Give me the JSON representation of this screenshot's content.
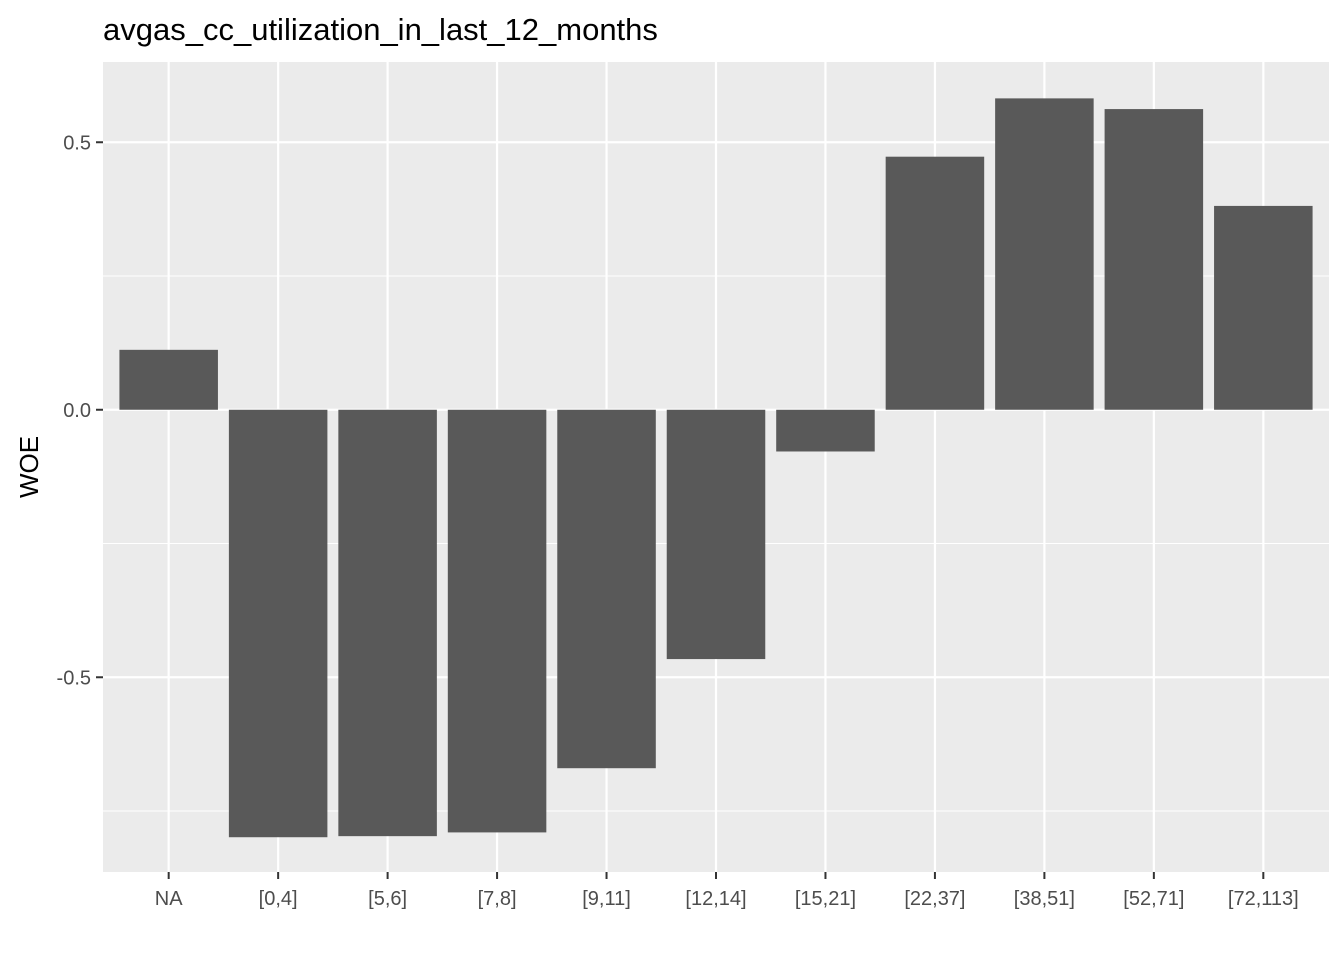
{
  "chart_data": {
    "type": "bar",
    "title": "avgas_cc_utilization_in_last_12_months",
    "xlabel": "",
    "ylabel": "WOE",
    "categories": [
      "NA",
      "[0,4]",
      "[5,6]",
      "[7,8]",
      "[9,11]",
      "[12,14]",
      "[15,21]",
      "[22,37]",
      "[38,51]",
      "[52,71]",
      "[72,113]"
    ],
    "values": [
      0.112,
      -0.799,
      -0.797,
      -0.79,
      -0.67,
      -0.466,
      -0.078,
      0.473,
      0.582,
      0.562,
      0.381
    ],
    "ylim": [
      -0.864,
      0.65
    ],
    "yticks": [
      -0.5,
      0.0,
      0.5
    ],
    "ytick_labels": [
      "-0.5",
      "0.0",
      "0.5"
    ],
    "grid": true,
    "colors": {
      "panel_background": "#ebebeb",
      "grid_major": "#ffffff",
      "bar_fill": "#595959",
      "tick_text": "#4d4d4d",
      "title_text": "#000000"
    }
  }
}
